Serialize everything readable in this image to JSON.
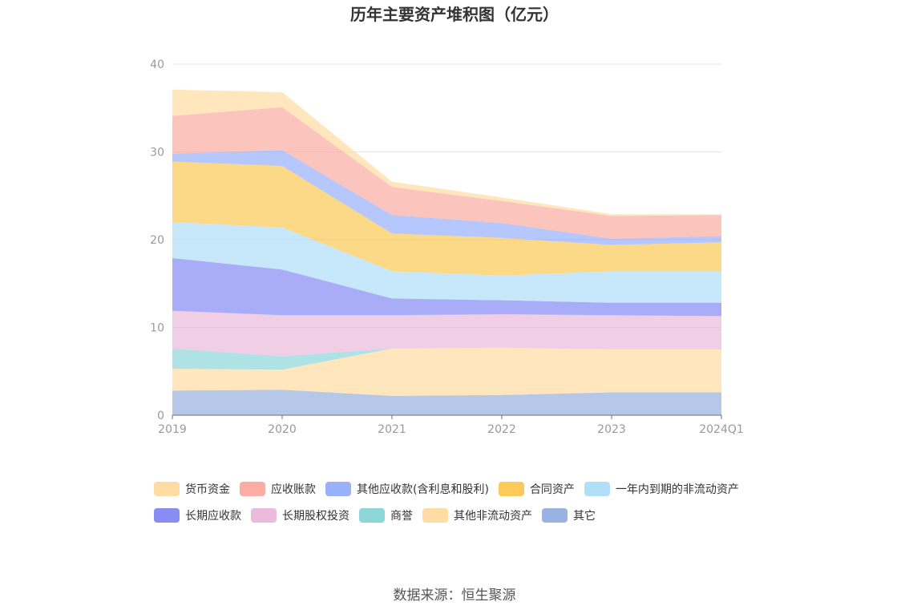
{
  "source_text": "数据来源：恒生聚源",
  "chart_data": {
    "type": "area",
    "stacked": true,
    "title": "历年主要资产堆积图（亿元）",
    "categories": [
      "2019",
      "2020",
      "2021",
      "2022",
      "2023",
      "2024Q1"
    ],
    "ylim": [
      0,
      40
    ],
    "yticks": [
      0,
      10,
      20,
      30,
      40
    ],
    "grid": true,
    "legend_position": "bottom",
    "series": [
      {
        "name": "其它",
        "color": "#8eaadb",
        "values": [
          2.8,
          2.9,
          2.2,
          2.3,
          2.6,
          2.6
        ]
      },
      {
        "name": "其他非流动资产",
        "color": "#ffd899",
        "values": [
          2.5,
          2.3,
          5.4,
          5.4,
          4.9,
          4.9
        ]
      },
      {
        "name": "商誉",
        "color": "#82d3d5",
        "values": [
          2.3,
          1.5,
          0.0,
          0.0,
          0.0,
          0.0
        ]
      },
      {
        "name": "长期股权投资",
        "color": "#e8b4d8",
        "values": [
          4.3,
          4.7,
          3.8,
          3.8,
          3.9,
          3.8
        ]
      },
      {
        "name": "长期应收款",
        "color": "#7b7ff2",
        "values": [
          6.0,
          5.2,
          1.9,
          1.6,
          1.4,
          1.5
        ]
      },
      {
        "name": "一年内到期的非流动资产",
        "color": "#a8dcf7",
        "values": [
          4.1,
          4.8,
          3.1,
          2.8,
          3.6,
          3.6
        ]
      },
      {
        "name": "合同资产",
        "color": "#fbc447",
        "values": [
          6.9,
          7.0,
          4.3,
          4.3,
          3.0,
          3.3
        ]
      },
      {
        "name": "其他应收款(含利息和股利)",
        "color": "#8ea9fb",
        "values": [
          0.9,
          1.8,
          2.1,
          1.7,
          0.7,
          0.7
        ]
      },
      {
        "name": "应收账款",
        "color": "#f9a49a",
        "values": [
          4.3,
          4.9,
          3.2,
          2.5,
          2.6,
          2.4
        ]
      },
      {
        "name": "货币资金",
        "color": "#ffd899",
        "values": [
          3.0,
          1.7,
          0.6,
          0.4,
          0.2,
          0.1
        ]
      }
    ],
    "legend_order": [
      "货币资金",
      "应收账款",
      "其他应收款(含利息和股利)",
      "合同资产",
      "一年内到期的非流动资产",
      "长期应收款",
      "长期股权投资",
      "商誉",
      "其他非流动资产",
      "其它"
    ]
  }
}
